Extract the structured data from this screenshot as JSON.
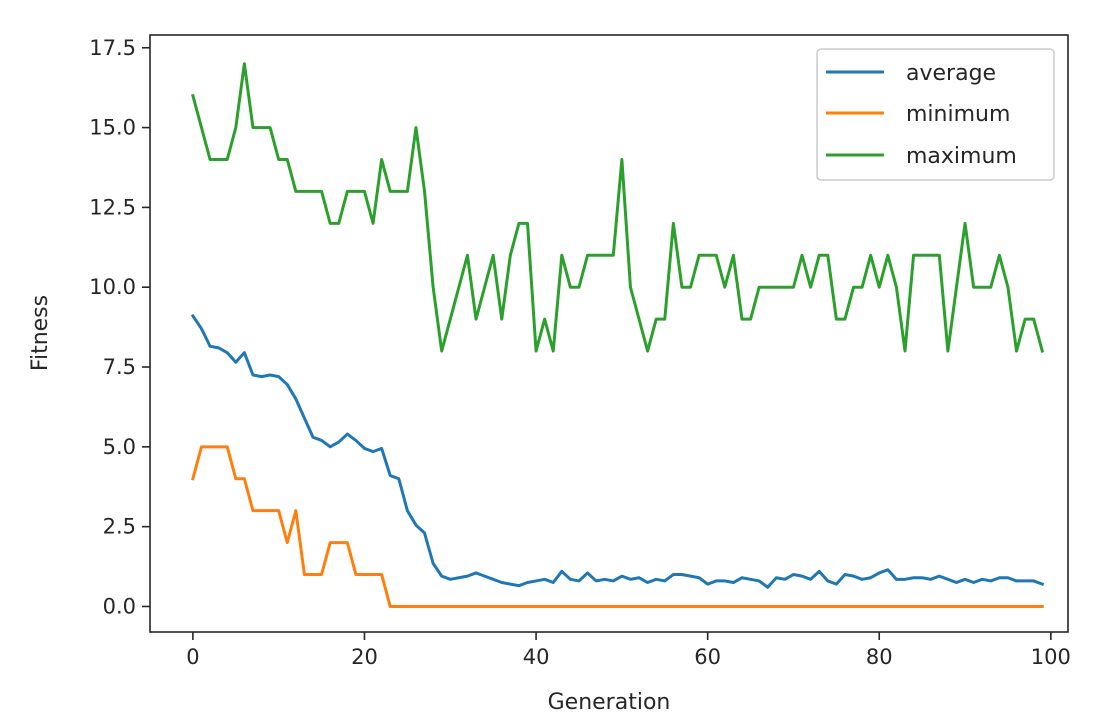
{
  "chart_data": {
    "type": "line",
    "xlabel": "Generation",
    "ylabel": "Fitness",
    "xlim": [
      -5,
      102
    ],
    "ylim": [
      -0.8,
      17.9
    ],
    "xticks": [
      0,
      20,
      40,
      60,
      80,
      100
    ],
    "yticks": [
      0.0,
      2.5,
      5.0,
      7.5,
      10.0,
      12.5,
      15.0,
      17.5
    ],
    "xtick_labels": [
      "0",
      "20",
      "40",
      "60",
      "80",
      "100"
    ],
    "ytick_labels": [
      "0.0",
      "2.5",
      "5.0",
      "7.5",
      "10.0",
      "12.5",
      "15.0",
      "17.5"
    ],
    "grid": false,
    "legend": "top-right",
    "x": [
      0,
      1,
      2,
      3,
      4,
      5,
      6,
      7,
      8,
      9,
      10,
      11,
      12,
      13,
      14,
      15,
      16,
      17,
      18,
      19,
      20,
      21,
      22,
      23,
      24,
      25,
      26,
      27,
      28,
      29,
      30,
      31,
      32,
      33,
      34,
      35,
      36,
      37,
      38,
      39,
      40,
      41,
      42,
      43,
      44,
      45,
      46,
      47,
      48,
      49,
      50,
      51,
      52,
      53,
      54,
      55,
      56,
      57,
      58,
      59,
      60,
      61,
      62,
      63,
      64,
      65,
      66,
      67,
      68,
      69,
      70,
      71,
      72,
      73,
      74,
      75,
      76,
      77,
      78,
      79,
      80,
      81,
      82,
      83,
      84,
      85,
      86,
      87,
      88,
      89,
      90,
      91,
      92,
      93,
      94,
      95,
      96,
      97,
      98,
      99
    ],
    "series": [
      {
        "name": "average",
        "color": "#1f77b4",
        "values": [
          9.1,
          8.7,
          8.15,
          8.1,
          7.95,
          7.65,
          7.95,
          7.25,
          7.2,
          7.25,
          7.2,
          6.95,
          6.5,
          5.9,
          5.3,
          5.2,
          5.0,
          5.15,
          5.4,
          5.2,
          4.95,
          4.85,
          4.95,
          4.1,
          4.0,
          3.0,
          2.55,
          2.3,
          1.35,
          0.95,
          0.85,
          0.9,
          0.95,
          1.05,
          0.95,
          0.85,
          0.75,
          0.7,
          0.65,
          0.75,
          0.8,
          0.85,
          0.75,
          1.1,
          0.85,
          0.8,
          1.05,
          0.8,
          0.85,
          0.8,
          0.95,
          0.85,
          0.9,
          0.75,
          0.85,
          0.8,
          1.0,
          1.0,
          0.95,
          0.9,
          0.7,
          0.8,
          0.8,
          0.75,
          0.9,
          0.85,
          0.8,
          0.6,
          0.9,
          0.85,
          1.0,
          0.95,
          0.85,
          1.1,
          0.8,
          0.7,
          1.0,
          0.95,
          0.85,
          0.9,
          1.05,
          1.15,
          0.85,
          0.85,
          0.9,
          0.9,
          0.85,
          0.95,
          0.85,
          0.75,
          0.85,
          0.75,
          0.85,
          0.8,
          0.9,
          0.9,
          0.8,
          0.8,
          0.8,
          0.7
        ]
      },
      {
        "name": "minimum",
        "color": "#ff7f0e",
        "values": [
          4,
          5,
          5,
          5,
          5,
          4,
          4,
          3,
          3,
          3,
          3,
          2,
          3,
          1,
          1,
          1,
          2,
          2,
          2,
          1,
          1,
          1,
          1,
          0,
          0,
          0,
          0,
          0,
          0,
          0,
          0,
          0,
          0,
          0,
          0,
          0,
          0,
          0,
          0,
          0,
          0,
          0,
          0,
          0,
          0,
          0,
          0,
          0,
          0,
          0,
          0,
          0,
          0,
          0,
          0,
          0,
          0,
          0,
          0,
          0,
          0,
          0,
          0,
          0,
          0,
          0,
          0,
          0,
          0,
          0,
          0,
          0,
          0,
          0,
          0,
          0,
          0,
          0,
          0,
          0,
          0,
          0,
          0,
          0,
          0,
          0,
          0,
          0,
          0,
          0,
          0,
          0,
          0,
          0,
          0,
          0,
          0,
          0,
          0,
          0
        ]
      },
      {
        "name": "maximum",
        "color": "#2ca02c",
        "values": [
          16,
          15,
          14,
          14,
          14,
          15,
          17,
          15,
          15,
          15,
          14,
          14,
          13,
          13,
          13,
          13,
          12,
          12,
          13,
          13,
          13,
          12,
          14,
          13,
          13,
          13,
          15,
          13,
          10,
          8,
          9,
          10,
          11,
          9,
          10,
          11,
          9,
          11,
          12,
          12,
          8,
          9,
          8,
          11,
          10,
          10,
          11,
          11,
          11,
          11,
          14,
          10,
          9,
          8,
          9,
          9,
          12,
          10,
          10,
          11,
          11,
          11,
          10,
          11,
          9,
          9,
          10,
          10,
          10,
          10,
          10,
          11,
          10,
          11,
          11,
          9,
          9,
          10,
          10,
          11,
          10,
          11,
          10,
          8,
          11,
          11,
          11,
          11,
          8,
          10,
          12,
          10,
          10,
          10,
          11,
          10,
          8,
          9,
          9,
          8
        ]
      }
    ]
  }
}
